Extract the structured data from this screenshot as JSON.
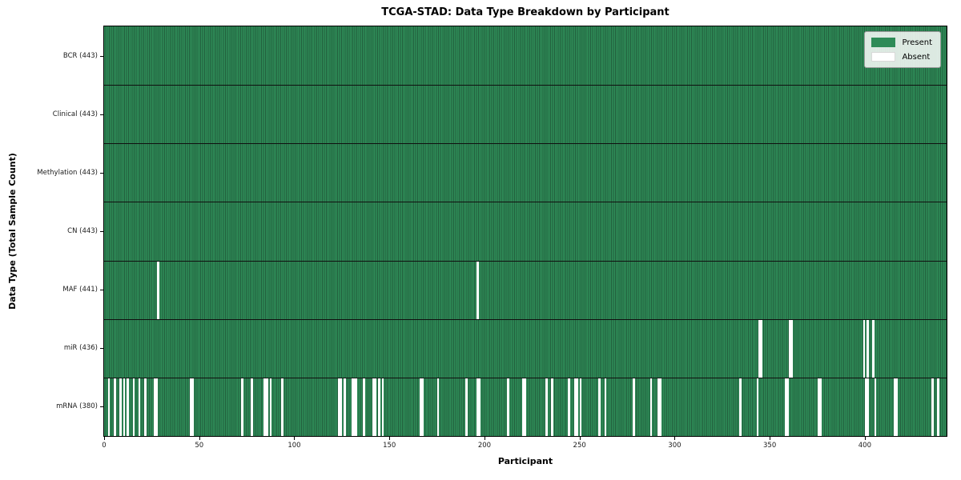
{
  "title": "TCGA-STAD: Data Type Breakdown by Participant",
  "xlabel": "Participant",
  "ylabel": "Data Type (Total Sample Count)",
  "legend": {
    "present_label": "Present",
    "absent_label": "Absent"
  },
  "colors": {
    "present": "#2e8b57",
    "present_edge": "#225f3d",
    "absent": "#ffffff",
    "separator": "#101010"
  },
  "chart_data": {
    "type": "heatmap",
    "title": "TCGA-STAD: Data Type Breakdown by Participant",
    "xlabel": "Participant",
    "ylabel": "Data Type (Total Sample Count)",
    "n_participants": 443,
    "xlim": [
      0,
      443
    ],
    "x_ticks": [
      0,
      50,
      100,
      150,
      200,
      250,
      300,
      350,
      400
    ],
    "legend_position": "upper right",
    "grid": false,
    "rows": [
      {
        "name": "BCR",
        "label": "BCR (443)",
        "total": 443,
        "absent": []
      },
      {
        "name": "Clinical",
        "label": "Clinical (443)",
        "total": 443,
        "absent": []
      },
      {
        "name": "Methylation",
        "label": "Methylation (443)",
        "total": 443,
        "absent": []
      },
      {
        "name": "CN",
        "label": "CN (443)",
        "total": 443,
        "absent": []
      },
      {
        "name": "MAF",
        "label": "MAF (441)",
        "total": 441,
        "absent": [
          28,
          196
        ]
      },
      {
        "name": "miR",
        "label": "miR (436)",
        "total": 436,
        "absent": [
          344,
          345,
          360,
          361,
          399,
          401,
          404
        ]
      },
      {
        "name": "mRNA",
        "label": "mRNA (380)",
        "total": 380,
        "absent": [
          2,
          5,
          8,
          10,
          12,
          15,
          18,
          21,
          26,
          27,
          45,
          46,
          72,
          77,
          84,
          85,
          87,
          93,
          123,
          124,
          126,
          130,
          131,
          132,
          136,
          141,
          142,
          144,
          146,
          166,
          167,
          175,
          190,
          196,
          197,
          212,
          220,
          221,
          232,
          235,
          244,
          247,
          248,
          250,
          260,
          263,
          278,
          287,
          291,
          292,
          334,
          343,
          358,
          359,
          375,
          376,
          400,
          401,
          405,
          415,
          416,
          435,
          438
        ]
      }
    ]
  }
}
